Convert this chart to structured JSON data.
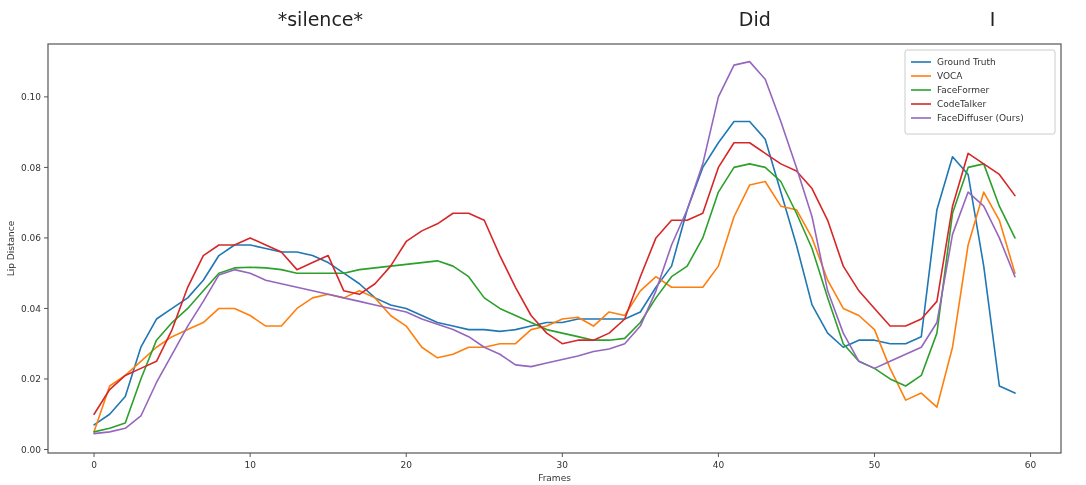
{
  "chart_data": {
    "type": "line",
    "xlabel": "Frames",
    "ylabel": "Lip Distance",
    "x": [
      0,
      1,
      2,
      3,
      4,
      5,
      6,
      7,
      8,
      9,
      10,
      11,
      12,
      13,
      14,
      15,
      16,
      17,
      18,
      19,
      20,
      21,
      22,
      23,
      24,
      25,
      26,
      27,
      28,
      29,
      30,
      31,
      32,
      33,
      34,
      35,
      36,
      37,
      38,
      39,
      40,
      41,
      42,
      43,
      44,
      45,
      46,
      47,
      48,
      49,
      50,
      51,
      52,
      53,
      54,
      55,
      56,
      57,
      58,
      59
    ],
    "series": [
      {
        "name": "Ground Truth",
        "color": "#1f77b4",
        "values": [
          0.007,
          0.01,
          0.015,
          0.029,
          0.037,
          0.04,
          0.043,
          0.048,
          0.055,
          0.058,
          0.058,
          0.057,
          0.056,
          0.056,
          0.055,
          0.053,
          0.05,
          0.047,
          0.043,
          0.041,
          0.04,
          0.038,
          0.036,
          0.035,
          0.034,
          0.034,
          0.0335,
          0.034,
          0.035,
          0.036,
          0.036,
          0.037,
          0.037,
          0.037,
          0.037,
          0.039,
          0.046,
          0.052,
          0.068,
          0.08,
          0.087,
          0.093,
          0.093,
          0.088,
          0.073,
          0.058,
          0.041,
          0.033,
          0.029,
          0.031,
          0.031,
          0.03,
          0.03,
          0.032,
          0.068,
          0.083,
          0.078,
          0.052,
          0.018,
          0.016
        ]
      },
      {
        "name": "VOCA",
        "color": "#ff7f0e",
        "values": [
          0.005,
          0.018,
          0.021,
          0.025,
          0.029,
          0.032,
          0.034,
          0.036,
          0.04,
          0.04,
          0.038,
          0.035,
          0.035,
          0.04,
          0.043,
          0.044,
          0.043,
          0.045,
          0.043,
          0.038,
          0.035,
          0.029,
          0.026,
          0.027,
          0.029,
          0.029,
          0.03,
          0.03,
          0.034,
          0.035,
          0.037,
          0.0375,
          0.035,
          0.039,
          0.038,
          0.045,
          0.049,
          0.046,
          0.046,
          0.046,
          0.052,
          0.066,
          0.075,
          0.076,
          0.069,
          0.068,
          0.06,
          0.048,
          0.04,
          0.038,
          0.034,
          0.023,
          0.014,
          0.016,
          0.012,
          0.029,
          0.058,
          0.073,
          0.065,
          0.05
        ]
      },
      {
        "name": "FaceFormer",
        "color": "#2ca02c",
        "values": [
          0.005,
          0.006,
          0.0075,
          0.02,
          0.031,
          0.036,
          0.04,
          0.045,
          0.05,
          0.0515,
          0.0517,
          0.0515,
          0.051,
          0.05,
          0.05,
          0.05,
          0.05,
          0.051,
          0.0515,
          0.052,
          0.0525,
          0.053,
          0.0535,
          0.052,
          0.049,
          0.043,
          0.04,
          0.038,
          0.036,
          0.034,
          0.033,
          0.032,
          0.031,
          0.031,
          0.0315,
          0.036,
          0.043,
          0.049,
          0.052,
          0.06,
          0.073,
          0.08,
          0.081,
          0.08,
          0.076,
          0.067,
          0.057,
          0.043,
          0.03,
          0.025,
          0.023,
          0.02,
          0.018,
          0.021,
          0.033,
          0.067,
          0.08,
          0.081,
          0.069,
          0.06
        ]
      },
      {
        "name": "CodeTalker",
        "color": "#d62728",
        "values": [
          0.01,
          0.017,
          0.021,
          0.023,
          0.025,
          0.034,
          0.046,
          0.055,
          0.058,
          0.058,
          0.06,
          0.058,
          0.056,
          0.051,
          0.053,
          0.055,
          0.045,
          0.044,
          0.047,
          0.052,
          0.059,
          0.062,
          0.064,
          0.067,
          0.067,
          0.065,
          0.055,
          0.046,
          0.038,
          0.033,
          0.03,
          0.031,
          0.031,
          0.033,
          0.037,
          0.049,
          0.06,
          0.065,
          0.065,
          0.067,
          0.08,
          0.087,
          0.087,
          0.084,
          0.081,
          0.079,
          0.074,
          0.065,
          0.052,
          0.045,
          0.04,
          0.035,
          0.035,
          0.037,
          0.042,
          0.069,
          0.084,
          0.081,
          0.078,
          0.072
        ]
      },
      {
        "name": "FaceDiffuser (Ours)",
        "color": "#9467bd",
        "values": [
          0.0045,
          0.005,
          0.006,
          0.0095,
          0.019,
          0.027,
          0.035,
          0.042,
          0.0495,
          0.051,
          0.05,
          0.048,
          0.047,
          0.046,
          0.045,
          0.044,
          0.043,
          0.042,
          0.041,
          0.04,
          0.039,
          0.037,
          0.0355,
          0.034,
          0.032,
          0.029,
          0.027,
          0.024,
          0.0235,
          0.0245,
          0.0255,
          0.0265,
          0.0278,
          0.0285,
          0.03,
          0.035,
          0.045,
          0.058,
          0.068,
          0.081,
          0.1,
          0.109,
          0.11,
          0.105,
          0.093,
          0.08,
          0.066,
          0.045,
          0.033,
          0.025,
          0.023,
          0.025,
          0.027,
          0.029,
          0.036,
          0.061,
          0.073,
          0.069,
          0.06,
          0.049
        ]
      }
    ],
    "xlim": [
      -2.95,
      61.95
    ],
    "xticks": [
      0,
      10,
      20,
      30,
      40,
      50,
      60
    ],
    "ylim": [
      -0.001,
      0.115
    ],
    "yticks": [
      {
        "value": 0,
        "label": "0.00"
      },
      {
        "value": 0.02,
        "label": "0.02"
      },
      {
        "value": 0.04,
        "label": "0.04"
      },
      {
        "value": 0.06,
        "label": "0.06"
      },
      {
        "value": 0.08,
        "label": "0.08"
      },
      {
        "value": 0.1,
        "label": "0.10"
      }
    ],
    "annotations": [
      "*silence*",
      "Did",
      "I"
    ],
    "legend": "top right",
    "grid": false,
    "marker": "none",
    "line_style": "solid"
  }
}
